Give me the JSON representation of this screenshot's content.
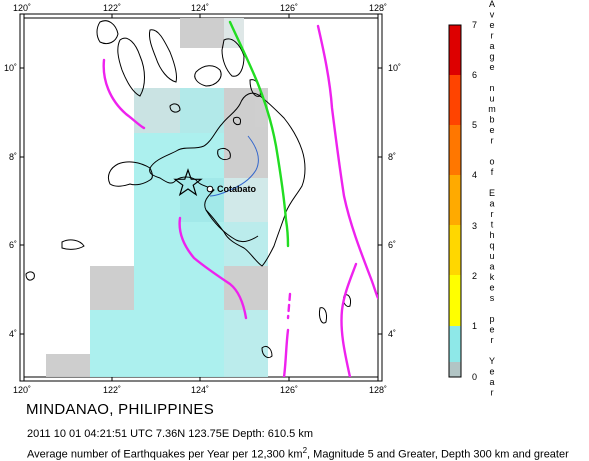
{
  "map": {
    "lon_ticks": [
      "120˚",
      "122˚",
      "124˚",
      "126˚",
      "128˚"
    ],
    "lat_ticks": [
      "4˚",
      "6˚",
      "8˚",
      "10˚"
    ],
    "city_label": "Cotabato",
    "epicenter_marker": "star-icon"
  },
  "legend": {
    "title_letters": [
      "A",
      "v",
      "e",
      "r",
      "a",
      "g",
      "e",
      "",
      "n",
      "u",
      "m",
      "b",
      "e",
      "r",
      "",
      "o",
      "f",
      "",
      "E",
      "a",
      "r",
      "t",
      "h",
      "q",
      "u",
      "a",
      "k",
      "e",
      "s",
      "",
      "p",
      "e",
      "r",
      "",
      "Y",
      "e",
      "a",
      "r"
    ],
    "ticks": [
      "0",
      "1",
      "2",
      "3",
      "4",
      "5",
      "6",
      "7"
    ],
    "colors": {
      "band_0_1": "#8ee8e8",
      "band_1_2": "#ffff00",
      "band_2_3": "#ffd700",
      "band_3_4": "#ffaa00",
      "band_4_5": "#ff7700",
      "band_5_6": "#ff4400",
      "band_6_7": "#dd0000"
    }
  },
  "caption": {
    "title": "MINDANAO, PHILIPPINES",
    "event": "2011 10 01 04:21:51 UTC 7.36N 123.75E Depth: 610.5 km",
    "description_prefix": "Average number of Earthquakes per Year per 12,300 km",
    "description_sup": "2",
    "description_suffix": ", Magnitude 5 and Greater, Depth 300 km and greater"
  },
  "colors": {
    "trench": "#ee22ee",
    "fault": "#22dd22",
    "coast": "#000000",
    "river": "#3366cc",
    "cell_low": "#bfe6e6",
    "cell_mid": "#a6f0ee",
    "cell_grey": "#cccccc"
  }
}
